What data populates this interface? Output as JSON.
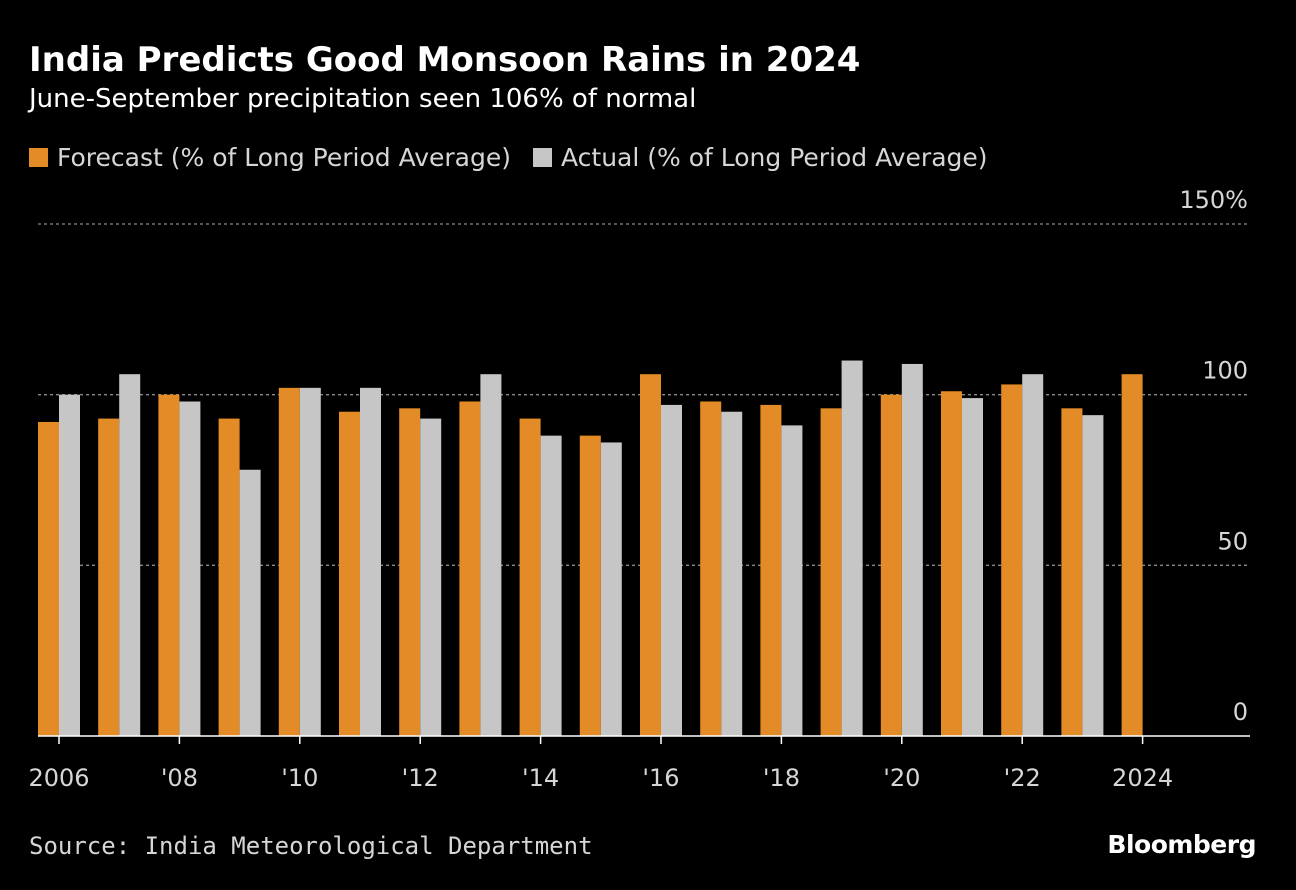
{
  "chart_data": {
    "type": "bar",
    "title": "India Predicts Good Monsoon Rains in 2024",
    "subtitle": "June-September precipitation seen 106% of normal",
    "categories": [
      "2006",
      "2007",
      "2008",
      "2009",
      "2010",
      "2011",
      "2012",
      "2013",
      "2014",
      "2015",
      "2016",
      "2017",
      "2018",
      "2019",
      "2020",
      "2021",
      "2022",
      "2023",
      "2024"
    ],
    "x_tick_labels": [
      "2006",
      "'08",
      "'10",
      "'12",
      "'14",
      "'16",
      "'18",
      "'20",
      "'22",
      "2024"
    ],
    "x_tick_categories": [
      "2006",
      "2008",
      "2010",
      "2012",
      "2014",
      "2016",
      "2018",
      "2020",
      "2022",
      "2024"
    ],
    "series": [
      {
        "name": "Forecast (% of Long Period Average)",
        "color": "#e38b26",
        "values": [
          92,
          93,
          100,
          93,
          102,
          95,
          96,
          98,
          93,
          88,
          106,
          98,
          97,
          96,
          100,
          101,
          103,
          96,
          106
        ]
      },
      {
        "name": "Actual (% of Long Period Average)",
        "color": "#c6c6c6",
        "values": [
          100,
          106,
          98,
          78,
          102,
          102,
          93,
          106,
          88,
          86,
          97,
          95,
          91,
          110,
          109,
          99,
          106,
          94,
          null
        ]
      }
    ],
    "y_ticks": [
      0,
      50,
      100,
      150
    ],
    "y_tick_labels": [
      "0",
      "50",
      "100",
      "150%"
    ],
    "ylim": [
      0,
      150
    ],
    "grid": true,
    "legend": "top-left"
  },
  "source": "Source: India Meteorological Department",
  "brand": "Bloomberg"
}
